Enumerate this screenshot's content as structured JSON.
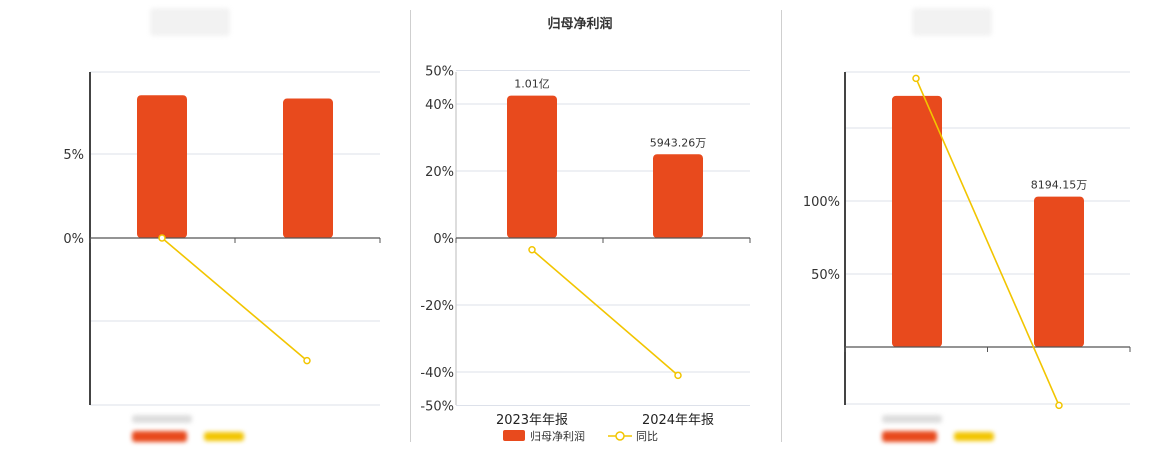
{
  "colors": {
    "bar": "#e84a1d",
    "line": "#f2c500",
    "grid": "#dde1ea",
    "axis": "#555555"
  },
  "chart_data": [
    {
      "type": "bar",
      "title": "",
      "categories": [
        "",
        ""
      ],
      "y_ticks": [
        {
          "value": 5,
          "label": "5%"
        },
        {
          "value": 0,
          "label": "0%"
        }
      ],
      "series": [
        {
          "kind": "bar",
          "values": [
            8.5,
            8.3
          ]
        },
        {
          "kind": "line",
          "values": [
            0.0,
            -7.3
          ]
        }
      ],
      "ylim": [
        -10,
        10
      ],
      "grid": true
    },
    {
      "type": "bar",
      "title": "归母净利润",
      "categories": [
        "2023年年报",
        "2024年年报"
      ],
      "y_ticks": [
        {
          "value": 50,
          "label": "50%"
        },
        {
          "value": 40,
          "label": "40%"
        },
        {
          "value": 20,
          "label": "20%"
        },
        {
          "value": 0,
          "label": "0%"
        },
        {
          "value": -20,
          "label": "-20%"
        },
        {
          "value": -40,
          "label": "-40%"
        },
        {
          "value": -50,
          "label": "-50%"
        }
      ],
      "series": [
        {
          "name": "归母净利润",
          "kind": "bar",
          "values": [
            42.5,
            25
          ],
          "labels": [
            "1.01亿",
            "5943.26万"
          ]
        },
        {
          "name": "同比",
          "kind": "line",
          "values": [
            -3.5,
            -41
          ]
        }
      ],
      "ylim": [
        -50,
        50
      ],
      "grid": true,
      "legend": "bottom"
    },
    {
      "type": "bar",
      "title": "",
      "categories": [
        "",
        ""
      ],
      "y_ticks": [
        {
          "value": 100,
          "label": "100%"
        },
        {
          "value": 50,
          "label": "50%"
        }
      ],
      "series": [
        {
          "kind": "bar",
          "values": [
            172,
            103
          ],
          "labels": [
            "",
            "8194.15万"
          ]
        },
        {
          "kind": "line",
          "values": [
            184,
            -40
          ]
        }
      ],
      "ylim": [
        -45,
        190
      ],
      "grid": true
    }
  ]
}
